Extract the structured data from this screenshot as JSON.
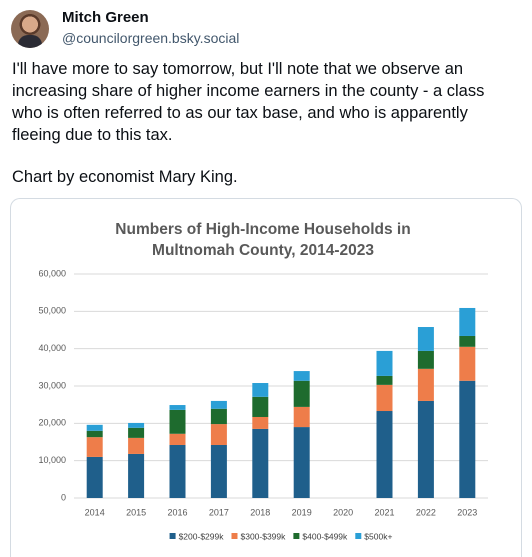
{
  "post": {
    "author": "Mitch Green",
    "handle": "@councilorgreen.bsky.social",
    "text": "I'll have more to say tomorrow, but I'll note that we observe an increasing share of higher income earners in the county - a class who is often referred to as our tax base, and who is apparently fleeing due to this tax.",
    "caption": "Chart by economist Mary King."
  },
  "chart_data": {
    "type": "stacked_bar",
    "title": [
      "Numbers of High-Income Households in",
      "Multnomah County, 2014-2023"
    ],
    "categories": [
      "2014",
      "2015",
      "2016",
      "2017",
      "2018",
      "2019",
      "2020",
      "2021",
      "2022",
      "2023"
    ],
    "series": [
      {
        "name": "$200-$299k",
        "color": "#1f5f8b",
        "values": [
          11000,
          11800,
          14200,
          14200,
          18500,
          19000,
          null,
          23300,
          26000,
          31400
        ]
      },
      {
        "name": "$300-$399k",
        "color": "#ee7d4a",
        "values": [
          5300,
          4300,
          3000,
          5600,
          3200,
          5400,
          null,
          7000,
          8600,
          9100
        ]
      },
      {
        "name": "$400-$499k",
        "color": "#1e6b2e",
        "values": [
          1700,
          2700,
          6400,
          4100,
          5400,
          7000,
          null,
          2400,
          4800,
          2900
        ]
      },
      {
        "name": "$500k+",
        "color": "#2a9fd6",
        "values": [
          1600,
          1300,
          1300,
          2100,
          3700,
          2600,
          null,
          6700,
          6400,
          7500
        ]
      }
    ],
    "ylim": [
      0,
      60000
    ],
    "yticks": [
      0,
      {
        "value": 10000,
        "label": "10,000"
      },
      {
        "value": 20000,
        "label": "20,000"
      },
      {
        "value": 30000,
        "label": "30,000"
      },
      {
        "value": 40000,
        "label": "40,000"
      },
      {
        "value": 50000,
        "label": "50,000"
      },
      {
        "value": 60000,
        "label": "60,000"
      }
    ],
    "grid": true,
    "legend": "bottom"
  }
}
